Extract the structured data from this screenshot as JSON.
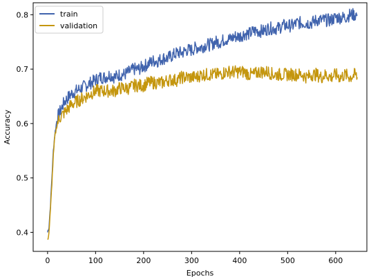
{
  "chart_data": {
    "type": "line",
    "xlabel": "Epochs",
    "ylabel": "Accuracy",
    "xlim": [
      -30,
      665
    ],
    "ylim": [
      0.365,
      0.822
    ],
    "x_ticks": [
      0,
      100,
      200,
      300,
      400,
      500,
      600
    ],
    "y_ticks": [
      0.4,
      0.5,
      0.6,
      0.7,
      0.8
    ],
    "grid": false,
    "legend_position": "top-left",
    "series": [
      {
        "name": "train",
        "color": "#4063ad",
        "x": [
          0,
          3,
          6,
          9,
          12,
          15,
          20,
          25,
          30,
          35,
          40,
          45,
          50,
          60,
          70,
          80,
          90,
          100,
          110,
          120,
          130,
          140,
          150,
          160,
          170,
          180,
          190,
          200,
          210,
          220,
          230,
          240,
          250,
          260,
          270,
          280,
          290,
          300,
          310,
          320,
          330,
          340,
          350,
          360,
          370,
          380,
          390,
          400,
          410,
          420,
          430,
          440,
          450,
          460,
          470,
          480,
          490,
          500,
          510,
          520,
          530,
          540,
          550,
          560,
          570,
          580,
          590,
          600,
          610,
          620,
          630,
          640,
          645
        ],
        "y": [
          0.4,
          0.41,
          0.45,
          0.5,
          0.55,
          0.58,
          0.61,
          0.62,
          0.63,
          0.64,
          0.645,
          0.65,
          0.655,
          0.66,
          0.665,
          0.67,
          0.675,
          0.68,
          0.685,
          0.685,
          0.69,
          0.685,
          0.69,
          0.69,
          0.695,
          0.7,
          0.7,
          0.705,
          0.71,
          0.715,
          0.715,
          0.72,
          0.72,
          0.725,
          0.73,
          0.73,
          0.735,
          0.735,
          0.74,
          0.74,
          0.745,
          0.745,
          0.75,
          0.75,
          0.755,
          0.755,
          0.76,
          0.76,
          0.765,
          0.765,
          0.77,
          0.77,
          0.77,
          0.775,
          0.775,
          0.775,
          0.78,
          0.78,
          0.78,
          0.785,
          0.785,
          0.785,
          0.785,
          0.79,
          0.79,
          0.79,
          0.79,
          0.795,
          0.795,
          0.795,
          0.8,
          0.8,
          0.8
        ]
      },
      {
        "name": "validation",
        "color": "#c4960e",
        "x": [
          0,
          3,
          6,
          9,
          12,
          15,
          20,
          25,
          30,
          35,
          40,
          45,
          50,
          60,
          70,
          80,
          90,
          100,
          110,
          120,
          130,
          140,
          150,
          160,
          170,
          180,
          190,
          200,
          210,
          220,
          230,
          240,
          250,
          260,
          270,
          280,
          290,
          300,
          310,
          320,
          330,
          340,
          350,
          360,
          370,
          380,
          390,
          400,
          410,
          420,
          430,
          440,
          450,
          460,
          470,
          480,
          490,
          500,
          510,
          520,
          530,
          540,
          550,
          560,
          570,
          580,
          590,
          600,
          610,
          620,
          630,
          640,
          645
        ],
        "y": [
          0.385,
          0.4,
          0.44,
          0.49,
          0.54,
          0.575,
          0.6,
          0.61,
          0.615,
          0.62,
          0.625,
          0.63,
          0.635,
          0.64,
          0.645,
          0.65,
          0.655,
          0.66,
          0.66,
          0.66,
          0.66,
          0.66,
          0.665,
          0.665,
          0.665,
          0.67,
          0.67,
          0.67,
          0.675,
          0.675,
          0.675,
          0.675,
          0.68,
          0.68,
          0.68,
          0.685,
          0.685,
          0.685,
          0.685,
          0.69,
          0.69,
          0.69,
          0.69,
          0.69,
          0.695,
          0.695,
          0.695,
          0.695,
          0.695,
          0.69,
          0.69,
          0.695,
          0.695,
          0.695,
          0.69,
          0.69,
          0.69,
          0.69,
          0.69,
          0.69,
          0.69,
          0.685,
          0.69,
          0.69,
          0.685,
          0.69,
          0.685,
          0.69,
          0.685,
          0.69,
          0.685,
          0.69,
          0.685
        ]
      }
    ]
  }
}
